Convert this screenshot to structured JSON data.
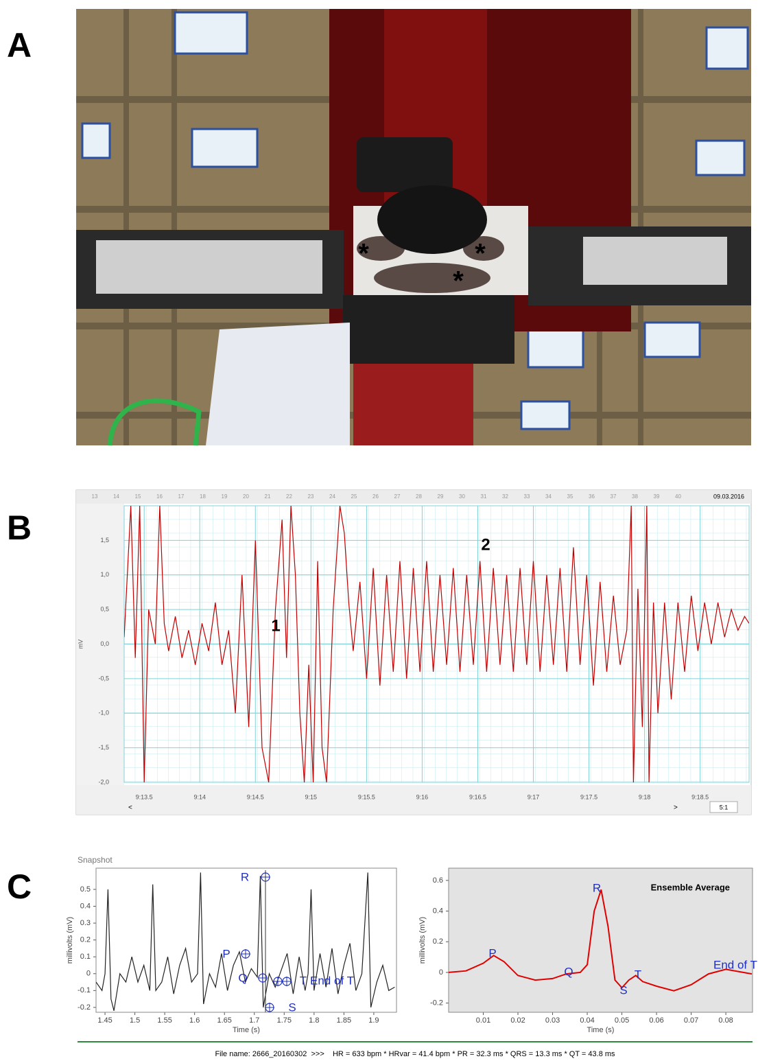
{
  "panels": {
    "a": {
      "label": "A",
      "annotations": [
        "*",
        "*",
        "*"
      ]
    },
    "b": {
      "label": "B",
      "date": "09.03.2016",
      "ruler": [
        13,
        14,
        15,
        16,
        17,
        18,
        19,
        20,
        21,
        22,
        23,
        24,
        25,
        26,
        27,
        28,
        29,
        30,
        31,
        32,
        33,
        34,
        35,
        36,
        37,
        38,
        39,
        40
      ],
      "zoom": "5:1",
      "prev": "<",
      "next": ">"
    },
    "c": {
      "label": "C",
      "footer": "File name: 2666_20160302  >>>    HR = 633 bpm * HRvar = 41.4 bpm * PR = 32.3 ms * QRS = 13.3 ms * QT = 43.8 ms"
    }
  },
  "chart_data": [
    {
      "type": "line",
      "y_label": "mV",
      "color": "#c00000",
      "grid": true,
      "annotations": [
        "1",
        "2"
      ],
      "xlim": [
        13.32,
        18.94
      ],
      "ylim": [
        -2,
        2
      ],
      "xticks": [
        {
          "value": 13.5,
          "label": "9:13.5"
        },
        {
          "value": 14,
          "label": "9:14"
        },
        {
          "value": 14.5,
          "label": "9:14.5"
        },
        {
          "value": 15,
          "label": "9:15"
        },
        {
          "value": 15.5,
          "label": "9:15.5"
        },
        {
          "value": 16,
          "label": "9:16"
        },
        {
          "value": 16.5,
          "label": "9:16.5"
        },
        {
          "value": 17,
          "label": "9:17"
        },
        {
          "value": 17.5,
          "label": "9:17.5"
        },
        {
          "value": 18,
          "label": "9:18"
        },
        {
          "value": 18.5,
          "label": "9:18.5"
        }
      ],
      "yticks": [
        {
          "value": -2,
          "label": "-2,0"
        },
        {
          "value": -1.5,
          "label": "-1,5"
        },
        {
          "value": -1,
          "label": "-1,0"
        },
        {
          "value": -0.5,
          "label": "-0,5"
        },
        {
          "value": 0,
          "label": "0,0"
        },
        {
          "value": 0.5,
          "label": "0,5"
        },
        {
          "value": 1,
          "label": "1,0"
        },
        {
          "value": 1.5,
          "label": "1,5"
        }
      ],
      "x": [
        13.32,
        13.38,
        13.42,
        13.46,
        13.5,
        13.54,
        13.6,
        13.64,
        13.68,
        13.72,
        13.78,
        13.84,
        13.9,
        13.96,
        14.02,
        14.08,
        14.14,
        14.2,
        14.26,
        14.32,
        14.38,
        14.44,
        14.5,
        14.56,
        14.62,
        14.68,
        14.74,
        14.78,
        14.82,
        14.86,
        14.9,
        14.94,
        14.98,
        15.02,
        15.06,
        15.1,
        15.14,
        15.2,
        15.26,
        15.3,
        15.34,
        15.38,
        15.44,
        15.5,
        15.56,
        15.62,
        15.68,
        15.74,
        15.8,
        15.86,
        15.92,
        15.98,
        16.04,
        16.1,
        16.16,
        16.22,
        16.28,
        16.34,
        16.4,
        16.46,
        16.52,
        16.58,
        16.64,
        16.7,
        16.76,
        16.82,
        16.88,
        16.94,
        17.0,
        17.06,
        17.12,
        17.18,
        17.24,
        17.3,
        17.36,
        17.42,
        17.48,
        17.54,
        17.6,
        17.66,
        17.72,
        17.78,
        17.84,
        17.88,
        17.9,
        17.94,
        17.98,
        18.02,
        18.04,
        18.08,
        18.12,
        18.18,
        18.24,
        18.3,
        18.36,
        18.42,
        18.48,
        18.54,
        18.6,
        18.66,
        18.72,
        18.78,
        18.84,
        18.9,
        18.94
      ],
      "values": [
        0.1,
        2.0,
        -0.2,
        2.0,
        -2.0,
        0.5,
        0.0,
        2.0,
        0.3,
        -0.1,
        0.4,
        -0.2,
        0.2,
        -0.3,
        0.3,
        -0.1,
        0.6,
        -0.3,
        0.2,
        -1.0,
        1.0,
        -1.2,
        1.5,
        -1.5,
        -2.0,
        0.5,
        1.8,
        -0.2,
        2.0,
        1.0,
        -1.0,
        -2.0,
        -0.3,
        -2.0,
        1.2,
        -1.5,
        -2.0,
        0.5,
        2.0,
        1.6,
        0.6,
        -0.1,
        0.9,
        -0.5,
        1.1,
        -0.6,
        1.0,
        -0.4,
        1.2,
        -0.5,
        1.1,
        -0.4,
        1.2,
        -0.4,
        1.0,
        -0.3,
        1.1,
        -0.4,
        1.0,
        -0.3,
        1.2,
        -0.4,
        1.1,
        -0.3,
        1.0,
        -0.4,
        1.1,
        -0.3,
        1.2,
        -0.4,
        1.0,
        -0.3,
        1.1,
        -0.4,
        1.4,
        -0.3,
        1.0,
        -0.6,
        0.9,
        -0.4,
        0.7,
        -0.3,
        0.2,
        2.0,
        -2.0,
        0.8,
        -1.2,
        2.0,
        -2.0,
        0.6,
        -1.0,
        0.6,
        -0.8,
        0.6,
        -0.4,
        0.7,
        -0.1,
        0.6,
        0.0,
        0.6,
        0.1,
        0.5,
        0.2,
        0.4,
        0.3
      ]
    },
    {
      "type": "line",
      "title": "Snapshot",
      "x_label": "Time (s)",
      "y_label": "millivolts (mV)",
      "color": "#222222",
      "annotations": [
        "R",
        "P",
        "Q",
        "S",
        "T",
        "End of T"
      ],
      "xlim": [
        1.435,
        1.938
      ],
      "ylim": [
        -0.229,
        0.626
      ],
      "xticks": [
        1.45,
        1.5,
        1.55,
        1.6,
        1.65,
        1.7,
        1.75,
        1.8,
        1.85,
        1.9
      ],
      "yticks": [
        -0.2,
        -0.1,
        0,
        0.1,
        0.2,
        0.3,
        0.4,
        0.5
      ],
      "x": [
        1.435,
        1.445,
        1.45,
        1.455,
        1.46,
        1.465,
        1.475,
        1.485,
        1.495,
        1.505,
        1.515,
        1.525,
        1.53,
        1.535,
        1.545,
        1.555,
        1.565,
        1.575,
        1.585,
        1.595,
        1.605,
        1.61,
        1.615,
        1.625,
        1.635,
        1.645,
        1.655,
        1.665,
        1.675,
        1.685,
        1.695,
        1.705,
        1.71,
        1.715,
        1.725,
        1.735,
        1.745,
        1.755,
        1.765,
        1.775,
        1.785,
        1.79,
        1.795,
        1.8,
        1.81,
        1.82,
        1.83,
        1.84,
        1.85,
        1.86,
        1.87,
        1.88,
        1.89,
        1.895,
        1.905,
        1.915,
        1.925,
        1.935
      ],
      "values": [
        -0.05,
        -0.1,
        0.0,
        0.5,
        -0.15,
        -0.22,
        0.0,
        -0.05,
        0.1,
        -0.05,
        0.05,
        -0.1,
        0.53,
        -0.1,
        -0.05,
        0.1,
        -0.12,
        0.05,
        0.15,
        -0.05,
        0.0,
        0.6,
        -0.18,
        0.0,
        -0.08,
        0.12,
        -0.1,
        0.05,
        0.13,
        -0.05,
        0.03,
        -0.02,
        0.58,
        -0.2,
        0.0,
        -0.08,
        0.02,
        0.12,
        -0.12,
        0.1,
        -0.1,
        0.0,
        0.5,
        -0.1,
        0.12,
        -0.08,
        0.15,
        -0.12,
        0.05,
        0.18,
        -0.1,
        0.0,
        0.6,
        -0.2,
        -0.05,
        0.05,
        -0.1,
        -0.08
      ]
    },
    {
      "type": "line",
      "title": "Ensemble Average",
      "x_label": "Time (s)",
      "y_label": "millivolts (mV)",
      "color": "#e00000",
      "background": "#e3e3e3",
      "annotations": [
        "P",
        "Q",
        "R",
        "S",
        "T",
        "End of T"
      ],
      "xlim": [
        0,
        0.0877
      ],
      "ylim": [
        -0.26,
        0.68
      ],
      "xticks": [
        0.01,
        0.02,
        0.03,
        0.04,
        0.05,
        0.06,
        0.07,
        0.08
      ],
      "yticks": [
        -0.2,
        0,
        0.2,
        0.4,
        0.6
      ],
      "x": [
        0,
        0.005,
        0.01,
        0.013,
        0.016,
        0.02,
        0.025,
        0.03,
        0.034,
        0.038,
        0.04,
        0.042,
        0.044,
        0.046,
        0.048,
        0.05,
        0.052,
        0.054,
        0.056,
        0.06,
        0.065,
        0.07,
        0.075,
        0.08,
        0.085,
        0.0875
      ],
      "values": [
        0.0,
        0.01,
        0.06,
        0.11,
        0.07,
        -0.02,
        -0.05,
        -0.04,
        -0.01,
        0.0,
        0.05,
        0.4,
        0.54,
        0.3,
        -0.05,
        -0.1,
        -0.05,
        -0.02,
        -0.06,
        -0.09,
        -0.12,
        -0.08,
        -0.01,
        0.02,
        0.0,
        -0.01
      ]
    }
  ]
}
